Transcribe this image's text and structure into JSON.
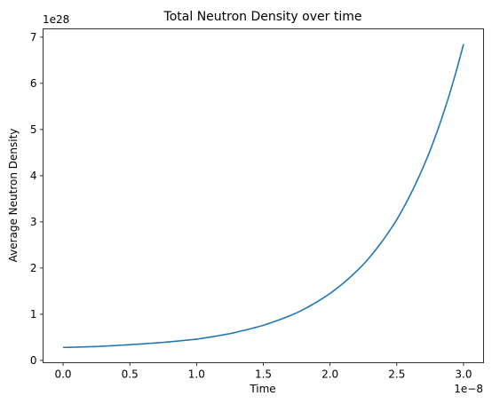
{
  "chart_data": {
    "type": "line",
    "title": "Total Neutron Density over time",
    "xlabel": "Time",
    "ylabel": "Average Neutron Density",
    "x_offset_text": "1e−8",
    "y_offset_text": "1e28",
    "x_scale": 1e-08,
    "y_scale": 1e+28,
    "xlim": [
      -0.15,
      3.15
    ],
    "ylim": [
      -0.05,
      7.18
    ],
    "x_ticks": [
      0.0,
      0.5,
      1.0,
      1.5,
      2.0,
      2.5,
      3.0
    ],
    "x_tick_labels": [
      "0.0",
      "0.5",
      "1.0",
      "1.5",
      "2.0",
      "2.5",
      "3.0"
    ],
    "y_ticks": [
      0,
      1,
      2,
      3,
      4,
      5,
      6,
      7
    ],
    "y_tick_labels": [
      "0",
      "1",
      "2",
      "3",
      "4",
      "5",
      "6",
      "7"
    ],
    "grid": false,
    "legend": "none",
    "series": [
      {
        "color": "#1f77b4",
        "x": [
          0.0,
          0.25,
          0.5,
          0.75,
          1.0,
          1.25,
          1.5,
          1.75,
          2.0,
          2.25,
          2.5,
          2.75,
          3.0
        ],
        "y": [
          0.28,
          0.3,
          0.34,
          0.39,
          0.46,
          0.58,
          0.76,
          1.03,
          1.45,
          2.08,
          3.05,
          4.55,
          6.85
        ]
      }
    ]
  }
}
